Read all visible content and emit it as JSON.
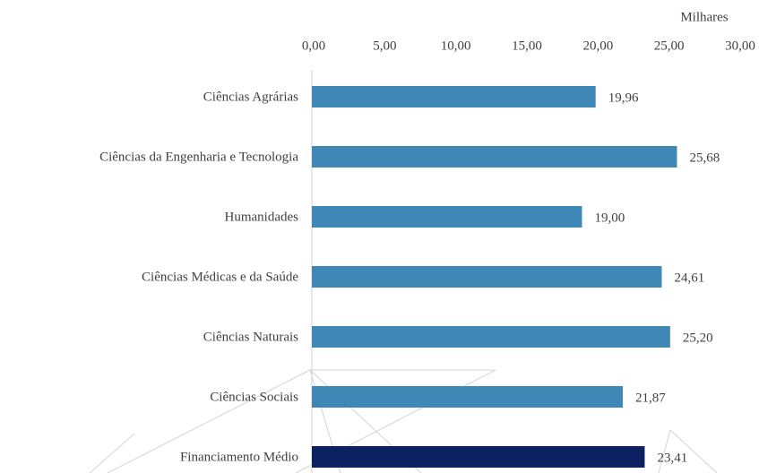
{
  "chart_data": {
    "type": "hbar",
    "x_axis_label": "Milhares",
    "categories": [
      "Ciências Agrárias",
      "Ciências da Engenharia e Tecnologia",
      "Humanidades",
      "Ciências Médicas e da Saúde",
      "Ciências Naturais",
      "Ciências Sociais",
      "Financiamento Médio"
    ],
    "values": [
      19.96,
      25.68,
      19.0,
      24.61,
      25.2,
      21.87,
      23.41
    ],
    "value_labels": [
      "19,96",
      "25,68",
      "19,00",
      "24,61",
      "25,20",
      "21,87",
      "23,41"
    ],
    "colors": [
      "#3f88b5",
      "#3f88b5",
      "#3f88b5",
      "#3f88b5",
      "#3f88b5",
      "#3f88b5",
      "#0c2260"
    ],
    "xlim": [
      0,
      30
    ],
    "xticks": [
      {
        "value": 0,
        "label": "0,00"
      },
      {
        "value": 5,
        "label": "5,00"
      },
      {
        "value": 10,
        "label": "10,00"
      },
      {
        "value": 15,
        "label": "15,00"
      },
      {
        "value": 20,
        "label": "20,00"
      },
      {
        "value": 25,
        "label": "25,00"
      },
      {
        "value": 30,
        "label": "30,00"
      }
    ],
    "grid": false
  }
}
